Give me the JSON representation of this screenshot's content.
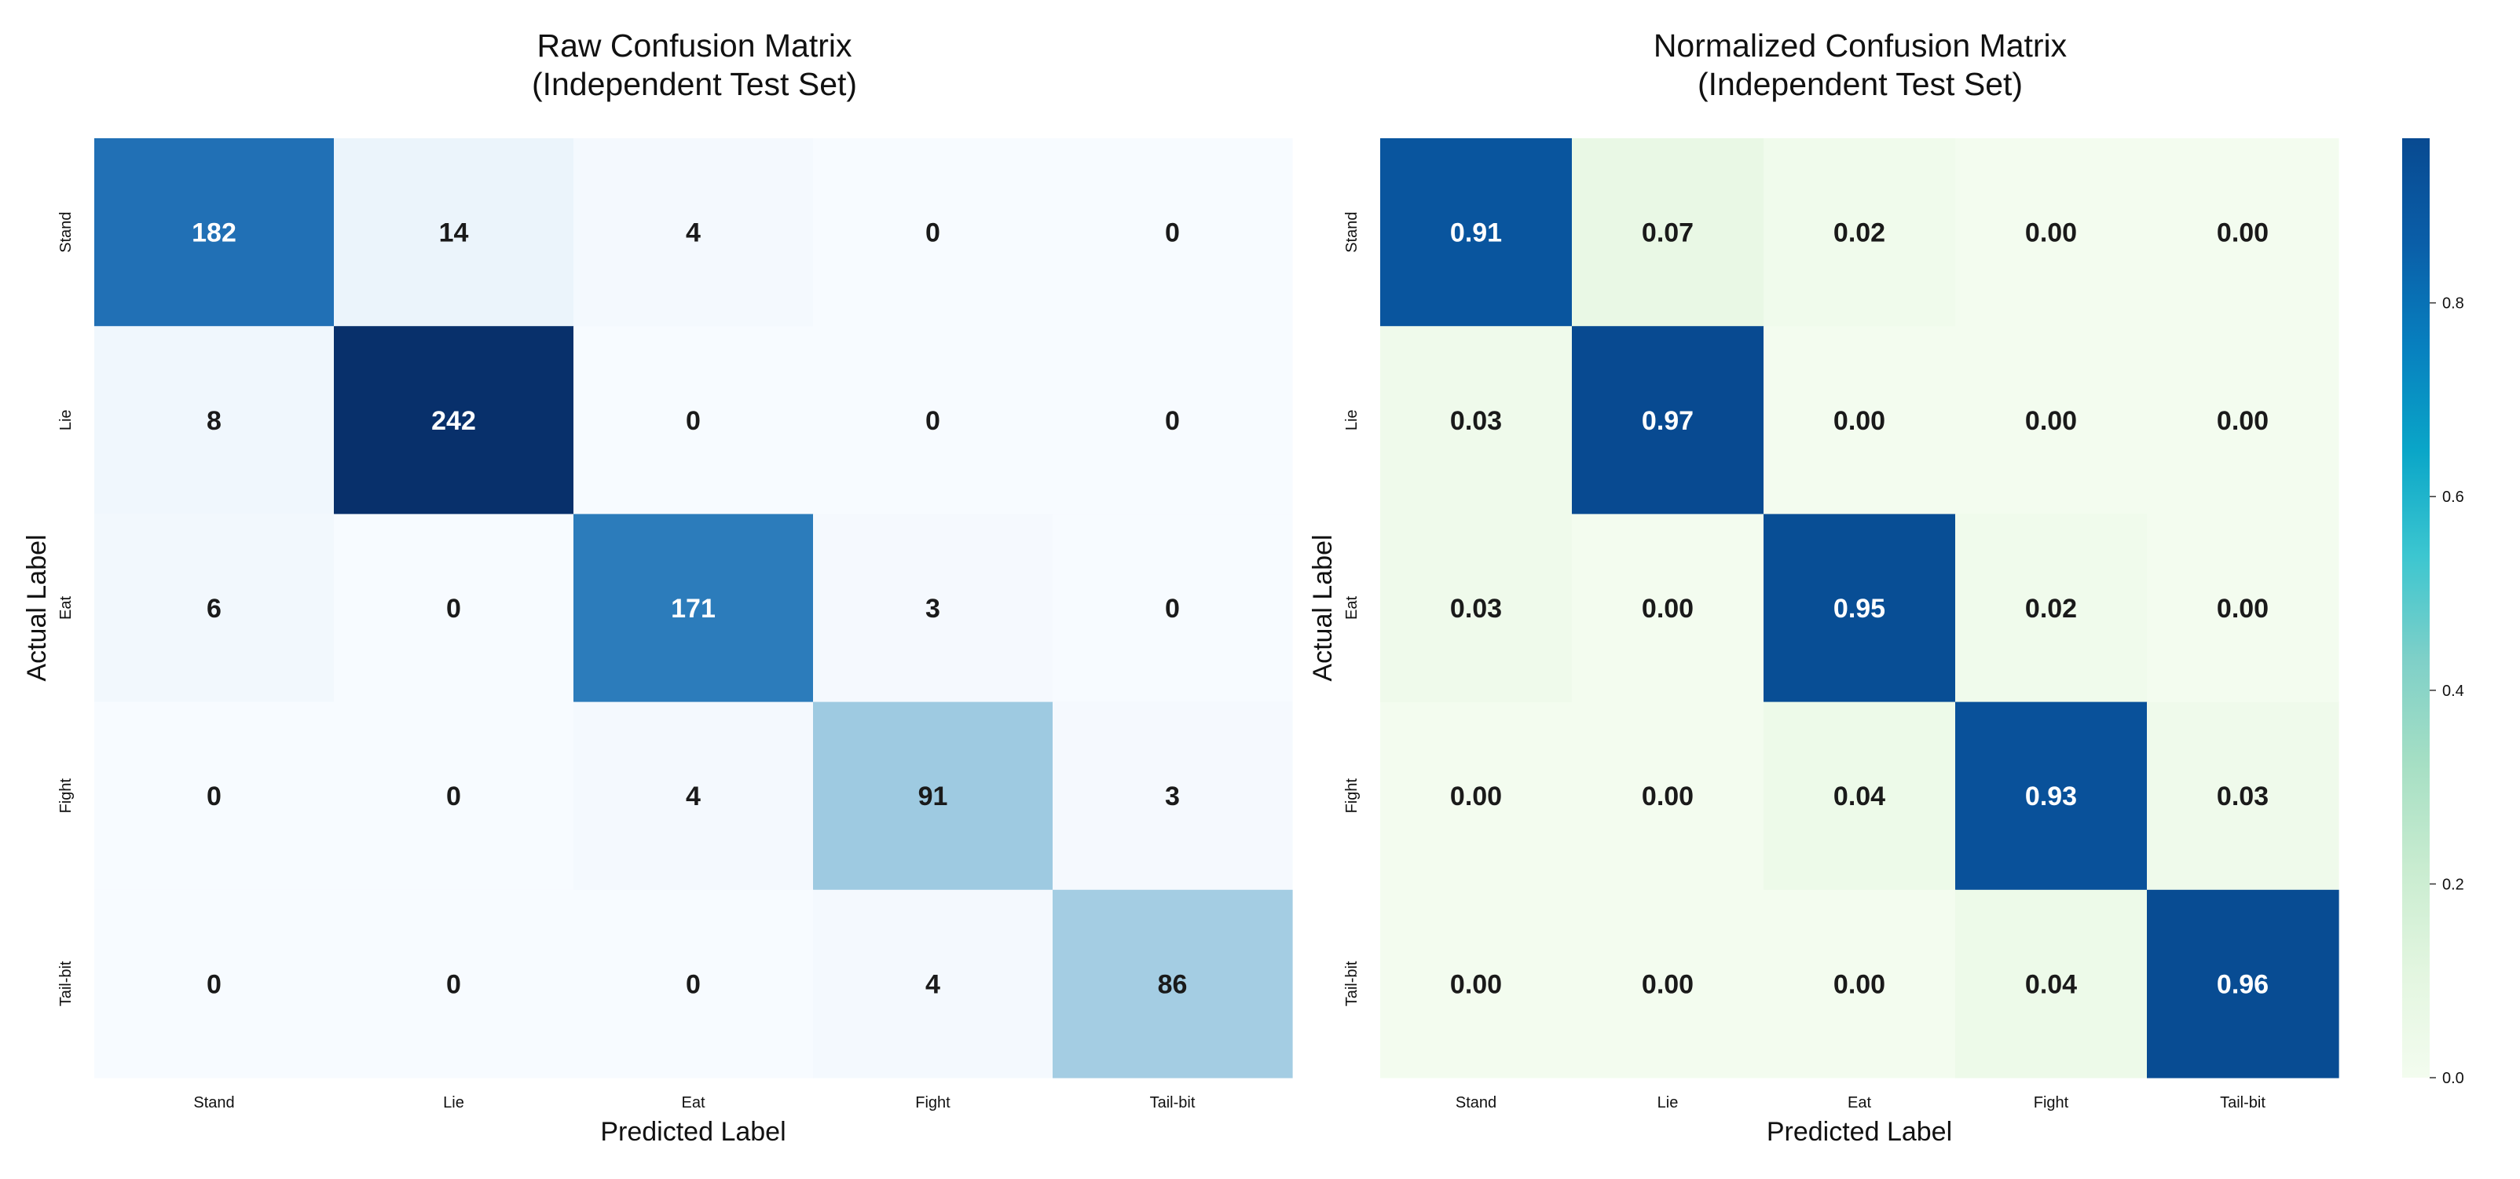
{
  "chart_data": [
    {
      "type": "heatmap",
      "title": "Raw Confusion Matrix\n(Independent Test Set)",
      "xlabel": "Predicted Label",
      "ylabel": "Actual Label",
      "x_categories": [
        "Stand",
        "Lie",
        "Eat",
        "Fight",
        "Tail-bit"
      ],
      "y_categories": [
        "Stand",
        "Lie",
        "Eat",
        "Fight",
        "Tail-bit"
      ],
      "values": [
        [
          182,
          14,
          4,
          0,
          0
        ],
        [
          8,
          242,
          0,
          0,
          0
        ],
        [
          6,
          0,
          171,
          3,
          0
        ],
        [
          0,
          0,
          4,
          91,
          3
        ],
        [
          0,
          0,
          0,
          4,
          86
        ]
      ],
      "colormap": "Blues",
      "annotation_format": "integer",
      "colorbar": false
    },
    {
      "type": "heatmap",
      "title": "Normalized Confusion Matrix\n(Independent Test Set)",
      "xlabel": "Predicted Label",
      "ylabel": "Actual Label",
      "x_categories": [
        "Stand",
        "Lie",
        "Eat",
        "Fight",
        "Tail-bit"
      ],
      "y_categories": [
        "Stand",
        "Lie",
        "Eat",
        "Fight",
        "Tail-bit"
      ],
      "values": [
        [
          0.91,
          0.07,
          0.02,
          0.0,
          0.0
        ],
        [
          0.03,
          0.97,
          0.0,
          0.0,
          0.0
        ],
        [
          0.03,
          0.0,
          0.95,
          0.02,
          0.0
        ],
        [
          0.0,
          0.0,
          0.04,
          0.93,
          0.03
        ],
        [
          0.0,
          0.0,
          0.0,
          0.04,
          0.96
        ]
      ],
      "colormap": "GnBu",
      "annotation_format": "2 decimals",
      "colorbar": true,
      "colorbar_range": [
        0,
        0.97
      ],
      "colorbar_ticks": [
        "0.0",
        "0.2",
        "0.4",
        "0.6",
        "0.8"
      ]
    }
  ]
}
